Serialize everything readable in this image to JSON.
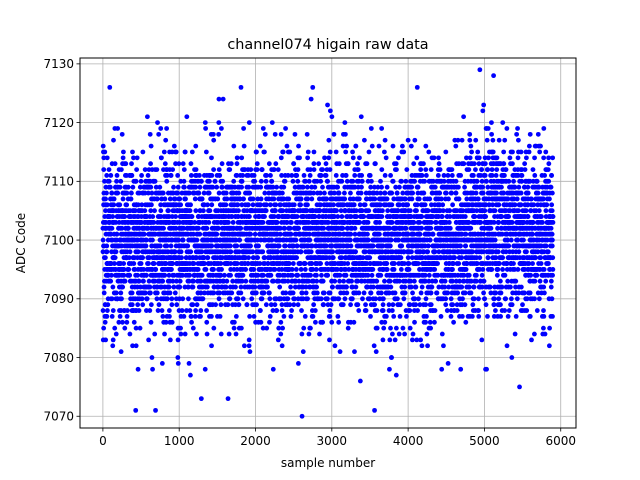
{
  "colors": {
    "marker": "#0000ff",
    "grid": "#b0b0b0",
    "axes": "#000000",
    "background": "#ffffff"
  },
  "chart_data": {
    "type": "scatter",
    "title": "channel074 higain raw data",
    "xlabel": "sample number",
    "ylabel": "ADC Code",
    "xlim": [
      -300,
      6200
    ],
    "ylim": [
      7068,
      7131
    ],
    "xticks": [
      0,
      1000,
      2000,
      3000,
      4000,
      5000,
      6000
    ],
    "yticks": [
      7070,
      7080,
      7090,
      7100,
      7110,
      7120,
      7130
    ],
    "grid": true,
    "legend": "none",
    "n_points": 5900,
    "central_value": 7100,
    "typical_range": [
      7085,
      7115
    ],
    "notable_points": [
      {
        "x": 90,
        "y": 7126
      },
      {
        "x": 430,
        "y": 7071
      },
      {
        "x": 690,
        "y": 7071
      },
      {
        "x": 1290,
        "y": 7073
      },
      {
        "x": 1640,
        "y": 7073
      },
      {
        "x": 1810,
        "y": 7126
      },
      {
        "x": 2610,
        "y": 7070
      },
      {
        "x": 2750,
        "y": 7126
      },
      {
        "x": 3560,
        "y": 7071
      },
      {
        "x": 4120,
        "y": 7126
      },
      {
        "x": 4940,
        "y": 7129
      },
      {
        "x": 5120,
        "y": 7128
      },
      {
        "x": 5460,
        "y": 7075
      }
    ]
  }
}
